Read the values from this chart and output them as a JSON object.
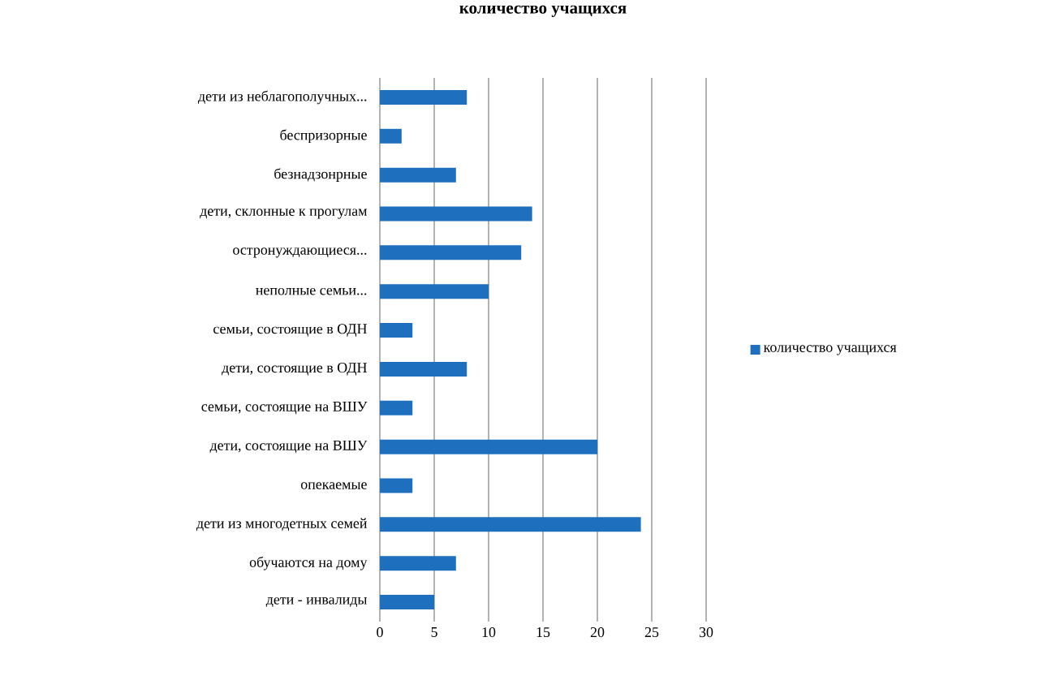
{
  "chart_data": {
    "type": "bar",
    "orientation": "horizontal",
    "title": "количество учащихся",
    "categories": [
      "дети из неблагополучных...",
      "беспризорные",
      "безнадзонрные",
      "дети, склонные к прогулам",
      "остронуждающиеся...",
      "неполные семьи...",
      "семьи, состоящие в ОДН",
      "дети, состоящие в ОДН",
      "семьи, состоящие на ВШУ",
      "дети, состоящие на ВШУ",
      "опекаемые",
      "дети из многодетных семей",
      "обучаются на дому",
      "дети - инвалиды"
    ],
    "series": [
      {
        "name": "количество учащихся",
        "color": "#1f6fbf",
        "values": [
          8,
          2,
          7,
          14,
          13,
          10,
          3,
          8,
          3,
          20,
          3,
          24,
          7,
          5
        ]
      }
    ],
    "xlim": [
      0,
      30
    ],
    "xticks": [
      0,
      5,
      10,
      15,
      20,
      25,
      30
    ],
    "grid": "x",
    "legend": "right"
  }
}
